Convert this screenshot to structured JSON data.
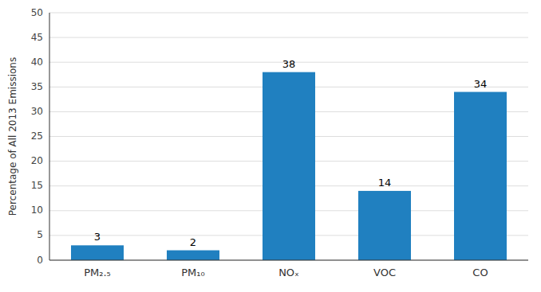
{
  "chart_data": {
    "type": "bar",
    "categories": [
      "PM₂.₅",
      "PM₁₀",
      "NOₓ",
      "VOC",
      "CO"
    ],
    "values": [
      3,
      2,
      38,
      14,
      34
    ],
    "color": "#2080C0",
    "ylabel": "Percentage of All 2013 Emissions",
    "ylim": [
      0,
      50
    ],
    "yticks": [
      0,
      5,
      10,
      15,
      20,
      25,
      30,
      35,
      40,
      45,
      50
    ],
    "grid": true,
    "data_labels": true
  }
}
